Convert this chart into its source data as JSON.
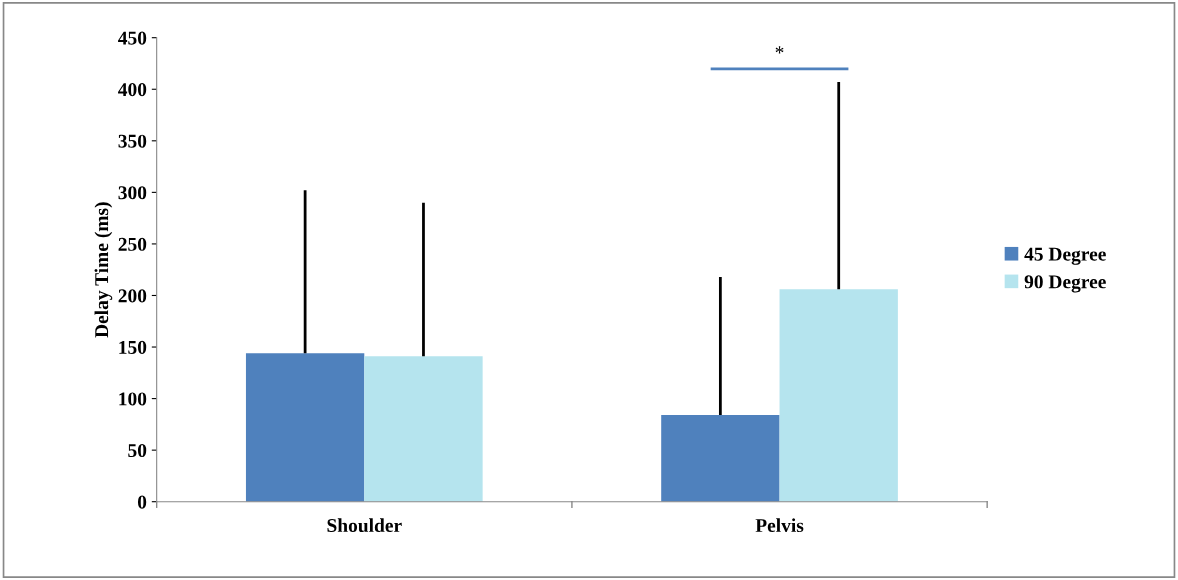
{
  "chart_data": {
    "type": "bar",
    "ylabel": "Delay Time (ms)",
    "categories": [
      "Shoulder",
      "Pelvis"
    ],
    "series": [
      {
        "name": "45 Degree",
        "color": "#4f81bd",
        "values": [
          144,
          84
        ],
        "errors": [
          [
            144,
            302
          ],
          [
            84,
            218
          ]
        ]
      },
      {
        "name": "90 Degree",
        "color": "#b5e4ee",
        "values": [
          141,
          206
        ],
        "errors": [
          [
            141,
            290
          ],
          [
            206,
            407
          ]
        ]
      }
    ],
    "ylim": [
      0,
      450
    ],
    "yticks": [
      0,
      50,
      100,
      150,
      200,
      250,
      300,
      350,
      400,
      450
    ],
    "annotations": [
      "*"
    ],
    "grid": false,
    "legend": "right"
  }
}
